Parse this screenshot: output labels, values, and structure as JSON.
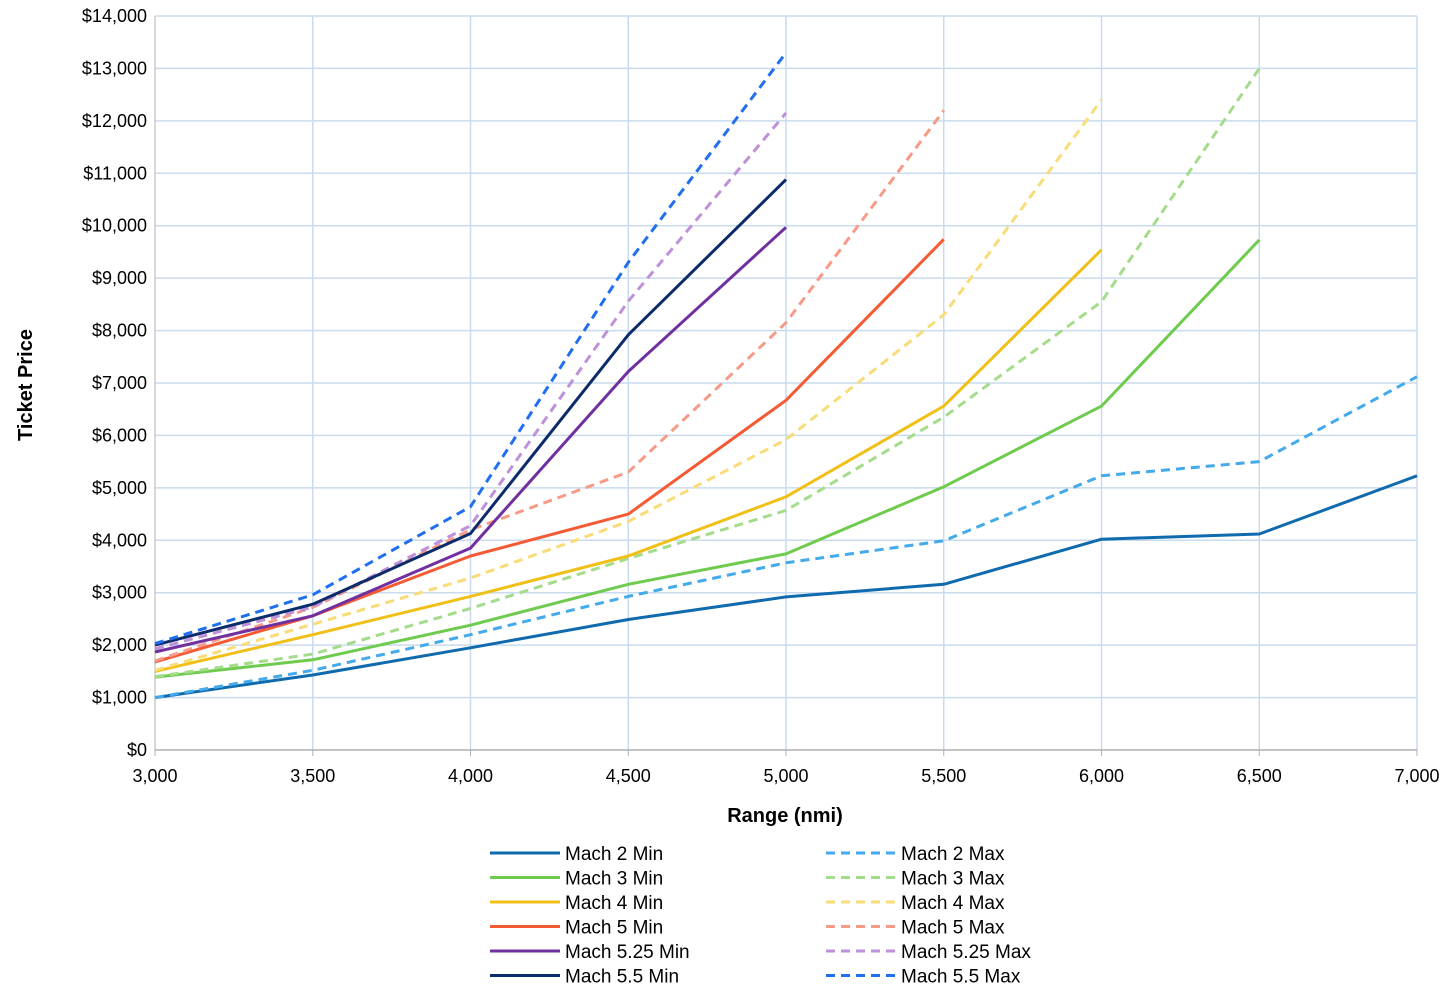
{
  "chart_data": {
    "type": "line",
    "title": "",
    "xlabel": "Range (nmi)",
    "ylabel": "Ticket Price",
    "xlim": [
      3000,
      7000
    ],
    "ylim": [
      0,
      14000
    ],
    "grid": true,
    "legend_position": "bottom",
    "x_ticks": [
      {
        "value": 3000,
        "label": "3,000"
      },
      {
        "value": 3500,
        "label": "3,500"
      },
      {
        "value": 4000,
        "label": "4,000"
      },
      {
        "value": 4500,
        "label": "4,500"
      },
      {
        "value": 5000,
        "label": "5,000"
      },
      {
        "value": 5500,
        "label": "5,500"
      },
      {
        "value": 6000,
        "label": "6,000"
      },
      {
        "value": 6500,
        "label": "6,500"
      },
      {
        "value": 7000,
        "label": "7,000"
      }
    ],
    "y_ticks": [
      {
        "value": 0,
        "label": "$0"
      },
      {
        "value": 1000,
        "label": "$1,000"
      },
      {
        "value": 2000,
        "label": "$2,000"
      },
      {
        "value": 3000,
        "label": "$3,000"
      },
      {
        "value": 4000,
        "label": "$4,000"
      },
      {
        "value": 5000,
        "label": "$5,000"
      },
      {
        "value": 6000,
        "label": "$6,000"
      },
      {
        "value": 7000,
        "label": "$7,000"
      },
      {
        "value": 8000,
        "label": "$8,000"
      },
      {
        "value": 9000,
        "label": "$9,000"
      },
      {
        "value": 10000,
        "label": "$10,000"
      },
      {
        "value": 11000,
        "label": "$11,000"
      },
      {
        "value": 12000,
        "label": "$12,000"
      },
      {
        "value": 13000,
        "label": "$13,000"
      },
      {
        "value": 14000,
        "label": "$14,000"
      }
    ],
    "series": [
      {
        "name": "Mach 2 Min",
        "color": "#0f6aae",
        "dashed": false,
        "x": [
          3000,
          3500,
          4000,
          4500,
          5000,
          5500,
          6000,
          6500,
          7000
        ],
        "y": [
          1000,
          1430,
          1950,
          2490,
          2920,
          3160,
          4020,
          4120,
          5230
        ]
      },
      {
        "name": "Mach 2 Max",
        "color": "#44aaeb",
        "dashed": true,
        "x": [
          3000,
          3500,
          4000,
          4500,
          5000,
          5500,
          6000,
          6500,
          7000
        ],
        "y": [
          1000,
          1520,
          2200,
          2930,
          3570,
          3990,
          5230,
          5500,
          7120
        ]
      },
      {
        "name": "Mach 3 Min",
        "color": "#6ecb4e",
        "dashed": false,
        "x": [
          3000,
          3500,
          4000,
          4500,
          5000,
          5500,
          6000,
          6500
        ],
        "y": [
          1390,
          1720,
          2380,
          3160,
          3740,
          5020,
          6560,
          9730
        ]
      },
      {
        "name": "Mach 3 Max",
        "color": "#a5dc8b",
        "dashed": true,
        "x": [
          3000,
          3500,
          4000,
          4500,
          5000,
          5500,
          6000,
          6500
        ],
        "y": [
          1400,
          1830,
          2700,
          3650,
          4570,
          6350,
          8550,
          13000
        ]
      },
      {
        "name": "Mach 4 Min",
        "color": "#f1c018",
        "dashed": false,
        "x": [
          3000,
          3500,
          4000,
          4500,
          5000,
          5500,
          6000
        ],
        "y": [
          1500,
          2200,
          2930,
          3700,
          4830,
          6560,
          9540
        ]
      },
      {
        "name": "Mach 4 Max",
        "color": "#f8dc78",
        "dashed": true,
        "x": [
          3000,
          3500,
          4000,
          4500,
          5000,
          5500,
          6000
        ],
        "y": [
          1520,
          2400,
          3280,
          4360,
          5920,
          8300,
          12400
        ]
      },
      {
        "name": "Mach 5 Min",
        "color": "#f45b34",
        "dashed": false,
        "x": [
          3000,
          3500,
          4000,
          4500,
          5000,
          5500
        ],
        "y": [
          1680,
          2560,
          3700,
          4500,
          6670,
          9740
        ]
      },
      {
        "name": "Mach 5 Max",
        "color": "#f79a87",
        "dashed": true,
        "x": [
          3000,
          3500,
          4000,
          4500,
          5000,
          5500
        ],
        "y": [
          1700,
          2720,
          4200,
          5300,
          8150,
          12200
        ]
      },
      {
        "name": "Mach 5.25 Min",
        "color": "#7030a0",
        "dashed": false,
        "x": [
          3000,
          3500,
          4000,
          4500,
          5000
        ],
        "y": [
          1870,
          2560,
          3850,
          7220,
          9970
        ]
      },
      {
        "name": "Mach 5.25 Max",
        "color": "#bf91d8",
        "dashed": true,
        "x": [
          3000,
          3500,
          4000,
          4500,
          5000
        ],
        "y": [
          1930,
          2730,
          4280,
          8560,
          12150
        ]
      },
      {
        "name": "Mach 5.5 Min",
        "color": "#0d2b6b",
        "dashed": false,
        "x": [
          3000,
          3500,
          4000,
          4500,
          5000
        ],
        "y": [
          2000,
          2780,
          4130,
          7920,
          10880
        ]
      },
      {
        "name": "Mach 5.5 Max",
        "color": "#1f6ff0",
        "dashed": true,
        "x": [
          3000,
          3500,
          4000,
          4500,
          5000
        ],
        "y": [
          2030,
          2960,
          4640,
          9300,
          13300
        ]
      }
    ]
  }
}
